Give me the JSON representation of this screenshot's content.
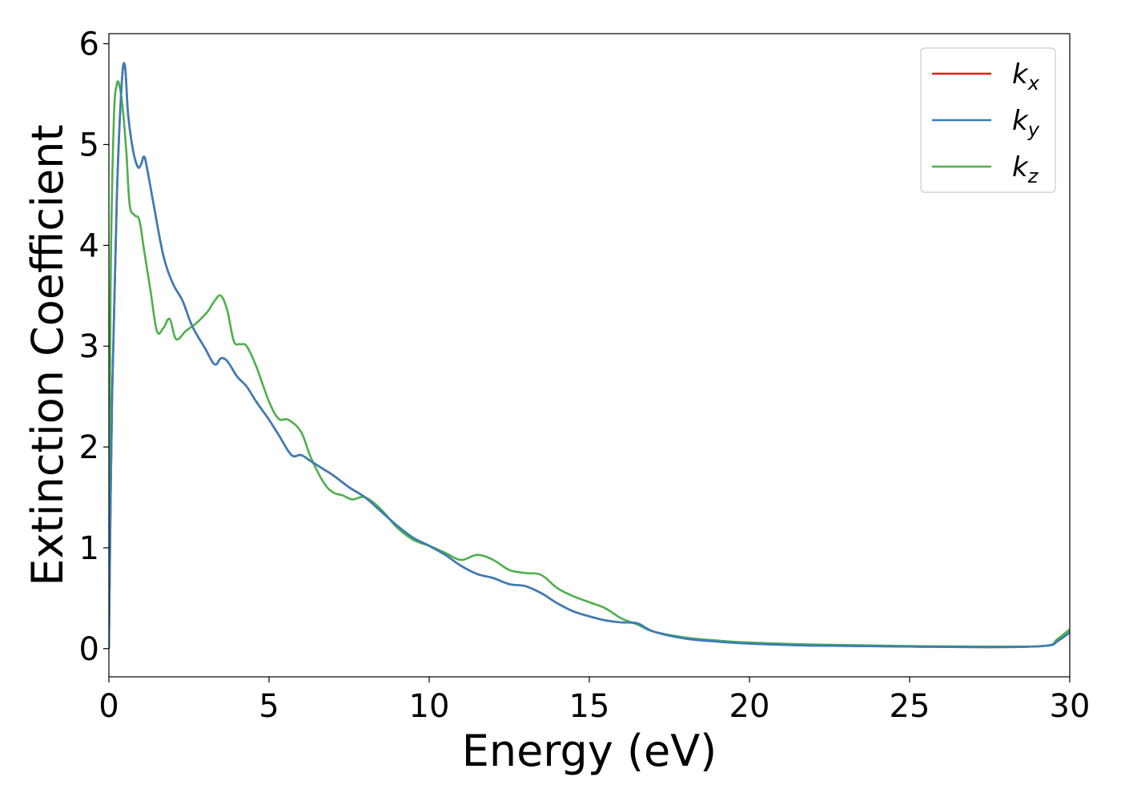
{
  "chart_data": {
    "type": "line",
    "title": "",
    "xlabel": "Energy (eV)",
    "ylabel": "Extinction Coefficient",
    "xlim": [
      0,
      30
    ],
    "ylim": [
      -0.28,
      6.1
    ],
    "xticks": [
      0,
      5,
      10,
      15,
      20,
      25,
      30
    ],
    "xtick_labels": [
      "0",
      "5",
      "10",
      "15",
      "20",
      "25",
      "30"
    ],
    "yticks": [
      0,
      1,
      2,
      3,
      4,
      5,
      6
    ],
    "ytick_labels": [
      "0",
      "1",
      "2",
      "3",
      "4",
      "5",
      "6"
    ],
    "grid": false,
    "legend_position": "top-right",
    "series": [
      {
        "name": "k_x",
        "label_base": "k",
        "label_sub": "x",
        "color": "#e41a1c",
        "x": [
          0,
          0.1,
          0.25,
          0.4,
          0.5,
          0.6,
          0.75,
          0.9,
          1.0,
          1.1,
          1.2,
          1.4,
          1.7,
          2.0,
          2.3,
          2.6,
          3.0,
          3.3,
          3.5,
          3.7,
          4.0,
          4.3,
          4.6,
          5.0,
          5.3,
          5.7,
          6.0,
          6.3,
          6.7,
          7.0,
          7.5,
          8.0,
          8.5,
          9.0,
          9.5,
          10.0,
          10.5,
          11.0,
          11.5,
          12.0,
          12.5,
          13.0,
          13.5,
          14.0,
          14.5,
          15.0,
          15.5,
          16.0,
          16.5,
          17.0,
          18.0,
          19.0,
          20.0,
          22.0,
          25.0,
          28.0,
          29.3,
          29.6,
          30.0
        ],
        "values": [
          0.0,
          2.5,
          4.5,
          5.6,
          5.78,
          5.3,
          4.95,
          4.78,
          4.8,
          4.88,
          4.75,
          4.4,
          3.9,
          3.62,
          3.45,
          3.2,
          2.98,
          2.82,
          2.88,
          2.85,
          2.7,
          2.6,
          2.45,
          2.27,
          2.12,
          1.92,
          1.92,
          1.86,
          1.78,
          1.72,
          1.6,
          1.5,
          1.36,
          1.22,
          1.1,
          1.02,
          0.93,
          0.82,
          0.74,
          0.7,
          0.64,
          0.62,
          0.55,
          0.45,
          0.37,
          0.32,
          0.28,
          0.26,
          0.25,
          0.17,
          0.1,
          0.07,
          0.05,
          0.03,
          0.02,
          0.015,
          0.03,
          0.07,
          0.16
        ]
      },
      {
        "name": "k_y",
        "label_base": "k",
        "label_sub": "y",
        "color": "#377eb8",
        "x": [
          0,
          0.1,
          0.25,
          0.4,
          0.5,
          0.6,
          0.75,
          0.9,
          1.0,
          1.1,
          1.2,
          1.4,
          1.7,
          2.0,
          2.3,
          2.6,
          3.0,
          3.3,
          3.5,
          3.7,
          4.0,
          4.3,
          4.6,
          5.0,
          5.3,
          5.7,
          6.0,
          6.3,
          6.7,
          7.0,
          7.5,
          8.0,
          8.5,
          9.0,
          9.5,
          10.0,
          10.5,
          11.0,
          11.5,
          12.0,
          12.5,
          13.0,
          13.5,
          14.0,
          14.5,
          15.0,
          15.5,
          16.0,
          16.5,
          17.0,
          18.0,
          19.0,
          20.0,
          22.0,
          25.0,
          28.0,
          29.3,
          29.6,
          30.0
        ],
        "values": [
          0.0,
          2.5,
          4.5,
          5.6,
          5.78,
          5.3,
          4.95,
          4.78,
          4.8,
          4.88,
          4.75,
          4.4,
          3.9,
          3.62,
          3.45,
          3.2,
          2.98,
          2.82,
          2.88,
          2.85,
          2.7,
          2.6,
          2.45,
          2.27,
          2.12,
          1.92,
          1.92,
          1.86,
          1.78,
          1.72,
          1.6,
          1.5,
          1.36,
          1.22,
          1.1,
          1.02,
          0.93,
          0.82,
          0.74,
          0.7,
          0.64,
          0.62,
          0.55,
          0.45,
          0.37,
          0.32,
          0.28,
          0.26,
          0.25,
          0.17,
          0.1,
          0.07,
          0.05,
          0.03,
          0.02,
          0.015,
          0.03,
          0.07,
          0.16
        ]
      },
      {
        "name": "k_z",
        "label_base": "k",
        "label_sub": "z",
        "color": "#4daf4a",
        "x": [
          0,
          0.05,
          0.15,
          0.25,
          0.35,
          0.45,
          0.55,
          0.65,
          0.8,
          0.95,
          1.1,
          1.3,
          1.5,
          1.7,
          1.9,
          2.1,
          2.4,
          2.7,
          2.9,
          3.1,
          3.3,
          3.5,
          3.7,
          3.9,
          4.1,
          4.3,
          4.6,
          5.0,
          5.3,
          5.6,
          6.0,
          6.3,
          6.7,
          7.0,
          7.3,
          7.6,
          8.0,
          8.5,
          9.0,
          9.5,
          10.0,
          10.5,
          11.0,
          11.5,
          12.0,
          12.5,
          13.0,
          13.5,
          14.0,
          14.5,
          15.0,
          15.5,
          16.0,
          16.5,
          17.0,
          18.0,
          19.0,
          20.0,
          22.0,
          25.0,
          28.0,
          29.3,
          29.6,
          30.0
        ],
        "values": [
          0.0,
          3.5,
          5.2,
          5.6,
          5.55,
          5.3,
          4.9,
          4.4,
          4.3,
          4.25,
          3.95,
          3.55,
          3.15,
          3.18,
          3.27,
          3.07,
          3.15,
          3.22,
          3.28,
          3.35,
          3.45,
          3.5,
          3.35,
          3.05,
          3.02,
          3.0,
          2.8,
          2.45,
          2.28,
          2.27,
          2.15,
          1.9,
          1.65,
          1.55,
          1.52,
          1.48,
          1.5,
          1.38,
          1.2,
          1.08,
          1.02,
          0.95,
          0.88,
          0.93,
          0.88,
          0.78,
          0.75,
          0.73,
          0.6,
          0.52,
          0.46,
          0.4,
          0.3,
          0.24,
          0.17,
          0.11,
          0.08,
          0.06,
          0.04,
          0.025,
          0.02,
          0.03,
          0.09,
          0.19
        ]
      }
    ]
  }
}
